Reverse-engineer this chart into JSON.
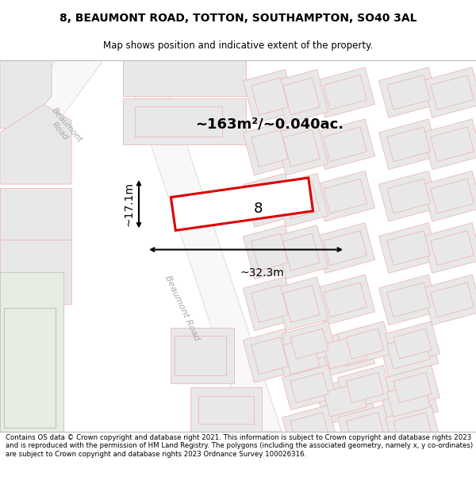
{
  "title_line1": "8, BEAUMONT ROAD, TOTTON, SOUTHAMPTON, SO40 3AL",
  "title_line2": "Map shows position and indicative extent of the property.",
  "footer_text": "Contains OS data © Crown copyright and database right 2021. This information is subject to Crown copyright and database rights 2023 and is reproduced with the permission of HM Land Registry. The polygons (including the associated geometry, namely x, y co-ordinates) are subject to Crown copyright and database rights 2023 Ordnance Survey 100026316.",
  "area_label": "~163m²/~0.040ac.",
  "width_label": "~32.3m",
  "height_label": "~17.1m",
  "property_number": "8",
  "map_bg": "#ffffff",
  "building_fill": "#e8e8e8",
  "building_stroke": "#f0b8b8",
  "road_fill": "#ffffff",
  "road_edge": "#c8c8c8",
  "road_label_color": "#aaaaaa",
  "highlight_fill": "#ffffff",
  "highlight_stroke": "#dd0000",
  "title_bg": "#ffffff",
  "footer_bg": "#ffffff",
  "green_fill": "#e8ede4",
  "green_stroke": "#c8c8c8"
}
